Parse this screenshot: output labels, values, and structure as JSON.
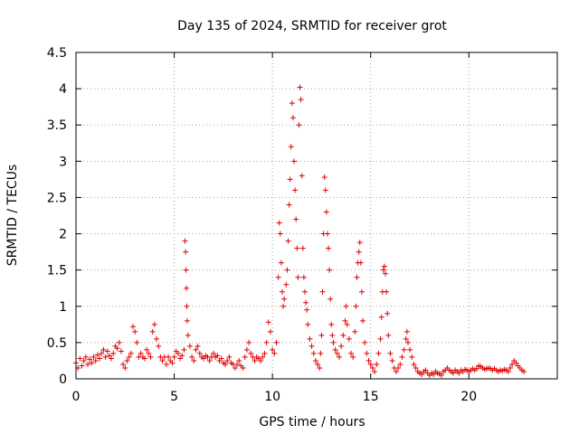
{
  "chart_data": {
    "type": "scatter",
    "title": "Day 135 of 2024, SRMTID for receiver grot",
    "xlabel": "GPS time / hours",
    "ylabel": "SRMTID / TECUs",
    "xlim": [
      0,
      24.5
    ],
    "ylim": [
      0,
      4.5
    ],
    "x_ticks": [
      0,
      5,
      10,
      15,
      20
    ],
    "x_tick_labels": [
      "0",
      "5",
      "10",
      "15",
      "20"
    ],
    "y_ticks": [
      0,
      0.5,
      1,
      1.5,
      2,
      2.5,
      3,
      3.5,
      4,
      4.5
    ],
    "y_tick_labels": [
      "0",
      "0.5",
      "1",
      "1.5",
      "2",
      "2.5",
      "3",
      "3.5",
      "4",
      "4.5"
    ],
    "grid": true,
    "marker": "+",
    "series": [
      {
        "name": "SRMTID",
        "color": "#e00000",
        "points": [
          [
            0.0,
            0.22
          ],
          [
            0.1,
            0.15
          ],
          [
            0.2,
            0.28
          ],
          [
            0.3,
            0.18
          ],
          [
            0.4,
            0.25
          ],
          [
            0.5,
            0.3
          ],
          [
            0.6,
            0.2
          ],
          [
            0.7,
            0.27
          ],
          [
            0.8,
            0.22
          ],
          [
            0.9,
            0.3
          ],
          [
            1.0,
            0.25
          ],
          [
            1.1,
            0.33
          ],
          [
            1.2,
            0.28
          ],
          [
            1.3,
            0.35
          ],
          [
            1.4,
            0.4
          ],
          [
            1.5,
            0.3
          ],
          [
            1.6,
            0.38
          ],
          [
            1.7,
            0.32
          ],
          [
            1.8,
            0.28
          ],
          [
            1.9,
            0.35
          ],
          [
            2.0,
            0.45
          ],
          [
            2.1,
            0.42
          ],
          [
            2.2,
            0.5
          ],
          [
            2.3,
            0.38
          ],
          [
            2.4,
            0.2
          ],
          [
            2.5,
            0.15
          ],
          [
            2.6,
            0.25
          ],
          [
            2.7,
            0.3
          ],
          [
            2.8,
            0.35
          ],
          [
            2.9,
            0.72
          ],
          [
            3.0,
            0.65
          ],
          [
            3.1,
            0.5
          ],
          [
            3.2,
            0.3
          ],
          [
            3.3,
            0.35
          ],
          [
            3.4,
            0.3
          ],
          [
            3.5,
            0.28
          ],
          [
            3.6,
            0.4
          ],
          [
            3.7,
            0.35
          ],
          [
            3.8,
            0.3
          ],
          [
            3.9,
            0.65
          ],
          [
            4.0,
            0.75
          ],
          [
            4.1,
            0.55
          ],
          [
            4.2,
            0.45
          ],
          [
            4.3,
            0.3
          ],
          [
            4.4,
            0.25
          ],
          [
            4.5,
            0.3
          ],
          [
            4.6,
            0.2
          ],
          [
            4.7,
            0.3
          ],
          [
            4.8,
            0.25
          ],
          [
            4.9,
            0.22
          ],
          [
            5.0,
            0.3
          ],
          [
            5.1,
            0.38
          ],
          [
            5.2,
            0.35
          ],
          [
            5.3,
            0.28
          ],
          [
            5.4,
            0.32
          ],
          [
            5.5,
            0.4
          ],
          [
            5.55,
            1.9
          ],
          [
            5.58,
            1.75
          ],
          [
            5.6,
            1.5
          ],
          [
            5.62,
            1.25
          ],
          [
            5.64,
            1.0
          ],
          [
            5.66,
            0.8
          ],
          [
            5.7,
            0.6
          ],
          [
            5.8,
            0.45
          ],
          [
            5.9,
            0.3
          ],
          [
            6.0,
            0.25
          ],
          [
            6.1,
            0.4
          ],
          [
            6.2,
            0.45
          ],
          [
            6.3,
            0.35
          ],
          [
            6.4,
            0.3
          ],
          [
            6.5,
            0.28
          ],
          [
            6.6,
            0.32
          ],
          [
            6.7,
            0.3
          ],
          [
            6.8,
            0.25
          ],
          [
            6.9,
            0.3
          ],
          [
            7.0,
            0.35
          ],
          [
            7.1,
            0.3
          ],
          [
            7.2,
            0.32
          ],
          [
            7.3,
            0.25
          ],
          [
            7.4,
            0.28
          ],
          [
            7.5,
            0.22
          ],
          [
            7.6,
            0.2
          ],
          [
            7.7,
            0.25
          ],
          [
            7.8,
            0.3
          ],
          [
            7.9,
            0.22
          ],
          [
            8.0,
            0.2
          ],
          [
            8.1,
            0.15
          ],
          [
            8.2,
            0.2
          ],
          [
            8.3,
            0.25
          ],
          [
            8.4,
            0.18
          ],
          [
            8.5,
            0.15
          ],
          [
            8.6,
            0.3
          ],
          [
            8.7,
            0.4
          ],
          [
            8.8,
            0.5
          ],
          [
            8.9,
            0.35
          ],
          [
            9.0,
            0.3
          ],
          [
            9.1,
            0.25
          ],
          [
            9.2,
            0.3
          ],
          [
            9.3,
            0.28
          ],
          [
            9.4,
            0.25
          ],
          [
            9.5,
            0.3
          ],
          [
            9.6,
            0.35
          ],
          [
            9.7,
            0.5
          ],
          [
            9.8,
            0.78
          ],
          [
            9.9,
            0.65
          ],
          [
            10.0,
            0.4
          ],
          [
            10.1,
            0.35
          ],
          [
            10.2,
            0.5
          ],
          [
            10.3,
            1.4
          ],
          [
            10.35,
            2.15
          ],
          [
            10.4,
            2.0
          ],
          [
            10.45,
            1.6
          ],
          [
            10.5,
            1.2
          ],
          [
            10.55,
            1.0
          ],
          [
            10.6,
            1.1
          ],
          [
            10.7,
            1.3
          ],
          [
            10.75,
            1.5
          ],
          [
            10.8,
            1.9
          ],
          [
            10.85,
            2.4
          ],
          [
            10.9,
            2.75
          ],
          [
            10.95,
            3.2
          ],
          [
            11.0,
            3.8
          ],
          [
            11.05,
            3.6
          ],
          [
            11.1,
            3.0
          ],
          [
            11.15,
            2.6
          ],
          [
            11.2,
            2.2
          ],
          [
            11.25,
            1.8
          ],
          [
            11.3,
            1.4
          ],
          [
            11.35,
            3.5
          ],
          [
            11.4,
            4.02
          ],
          [
            11.45,
            3.85
          ],
          [
            11.5,
            2.8
          ],
          [
            11.55,
            1.8
          ],
          [
            11.6,
            1.4
          ],
          [
            11.65,
            1.2
          ],
          [
            11.7,
            1.05
          ],
          [
            11.75,
            0.95
          ],
          [
            11.8,
            0.75
          ],
          [
            11.9,
            0.55
          ],
          [
            12.0,
            0.45
          ],
          [
            12.1,
            0.35
          ],
          [
            12.2,
            0.25
          ],
          [
            12.3,
            0.2
          ],
          [
            12.4,
            0.15
          ],
          [
            12.45,
            0.35
          ],
          [
            12.5,
            0.6
          ],
          [
            12.55,
            1.2
          ],
          [
            12.6,
            2.0
          ],
          [
            12.65,
            2.78
          ],
          [
            12.7,
            2.6
          ],
          [
            12.75,
            2.3
          ],
          [
            12.8,
            2.0
          ],
          [
            12.85,
            1.8
          ],
          [
            12.9,
            1.5
          ],
          [
            12.95,
            1.1
          ],
          [
            13.0,
            0.75
          ],
          [
            13.05,
            0.6
          ],
          [
            13.1,
            0.5
          ],
          [
            13.2,
            0.4
          ],
          [
            13.3,
            0.35
          ],
          [
            13.4,
            0.3
          ],
          [
            13.5,
            0.45
          ],
          [
            13.6,
            0.6
          ],
          [
            13.7,
            0.8
          ],
          [
            13.75,
            1.0
          ],
          [
            13.8,
            0.75
          ],
          [
            13.9,
            0.55
          ],
          [
            14.0,
            0.35
          ],
          [
            14.1,
            0.3
          ],
          [
            14.2,
            0.65
          ],
          [
            14.25,
            1.0
          ],
          [
            14.3,
            1.4
          ],
          [
            14.35,
            1.6
          ],
          [
            14.4,
            1.75
          ],
          [
            14.45,
            1.88
          ],
          [
            14.5,
            1.6
          ],
          [
            14.55,
            1.2
          ],
          [
            14.6,
            0.8
          ],
          [
            14.7,
            0.5
          ],
          [
            14.8,
            0.35
          ],
          [
            14.9,
            0.25
          ],
          [
            15.0,
            0.2
          ],
          [
            15.1,
            0.15
          ],
          [
            15.2,
            0.1
          ],
          [
            15.3,
            0.2
          ],
          [
            15.4,
            0.35
          ],
          [
            15.5,
            0.55
          ],
          [
            15.55,
            0.85
          ],
          [
            15.6,
            1.2
          ],
          [
            15.65,
            1.5
          ],
          [
            15.7,
            1.55
          ],
          [
            15.75,
            1.45
          ],
          [
            15.8,
            1.2
          ],
          [
            15.85,
            0.9
          ],
          [
            15.9,
            0.6
          ],
          [
            16.0,
            0.35
          ],
          [
            16.1,
            0.25
          ],
          [
            16.2,
            0.15
          ],
          [
            16.3,
            0.1
          ],
          [
            16.4,
            0.15
          ],
          [
            16.5,
            0.2
          ],
          [
            16.6,
            0.3
          ],
          [
            16.7,
            0.4
          ],
          [
            16.8,
            0.55
          ],
          [
            16.85,
            0.65
          ],
          [
            16.9,
            0.5
          ],
          [
            17.0,
            0.4
          ],
          [
            17.1,
            0.3
          ],
          [
            17.2,
            0.2
          ],
          [
            17.3,
            0.15
          ],
          [
            17.4,
            0.1
          ],
          [
            17.5,
            0.08
          ],
          [
            17.6,
            0.06
          ],
          [
            17.7,
            0.1
          ],
          [
            17.8,
            0.12
          ],
          [
            17.9,
            0.08
          ],
          [
            18.0,
            0.05
          ],
          [
            18.1,
            0.08
          ],
          [
            18.2,
            0.06
          ],
          [
            18.3,
            0.1
          ],
          [
            18.4,
            0.08
          ],
          [
            18.5,
            0.07
          ],
          [
            18.6,
            0.05
          ],
          [
            18.7,
            0.1
          ],
          [
            18.8,
            0.12
          ],
          [
            18.9,
            0.15
          ],
          [
            19.0,
            0.12
          ],
          [
            19.1,
            0.1
          ],
          [
            19.2,
            0.08
          ],
          [
            19.3,
            0.12
          ],
          [
            19.4,
            0.1
          ],
          [
            19.5,
            0.08
          ],
          [
            19.6,
            0.12
          ],
          [
            19.7,
            0.1
          ],
          [
            19.8,
            0.13
          ],
          [
            19.9,
            0.12
          ],
          [
            20.0,
            0.1
          ],
          [
            20.1,
            0.12
          ],
          [
            20.2,
            0.14
          ],
          [
            20.3,
            0.12
          ],
          [
            20.4,
            0.14
          ],
          [
            20.5,
            0.18
          ],
          [
            20.6,
            0.17
          ],
          [
            20.7,
            0.15
          ],
          [
            20.8,
            0.13
          ],
          [
            20.9,
            0.14
          ],
          [
            21.0,
            0.15
          ],
          [
            21.1,
            0.14
          ],
          [
            21.2,
            0.12
          ],
          [
            21.3,
            0.14
          ],
          [
            21.4,
            0.12
          ],
          [
            21.5,
            0.1
          ],
          [
            21.6,
            0.12
          ],
          [
            21.7,
            0.11
          ],
          [
            21.8,
            0.13
          ],
          [
            21.9,
            0.12
          ],
          [
            22.0,
            0.1
          ],
          [
            22.1,
            0.15
          ],
          [
            22.2,
            0.2
          ],
          [
            22.3,
            0.25
          ],
          [
            22.4,
            0.22
          ],
          [
            22.5,
            0.18
          ],
          [
            22.6,
            0.15
          ],
          [
            22.7,
            0.12
          ],
          [
            22.8,
            0.1
          ]
        ]
      }
    ]
  }
}
